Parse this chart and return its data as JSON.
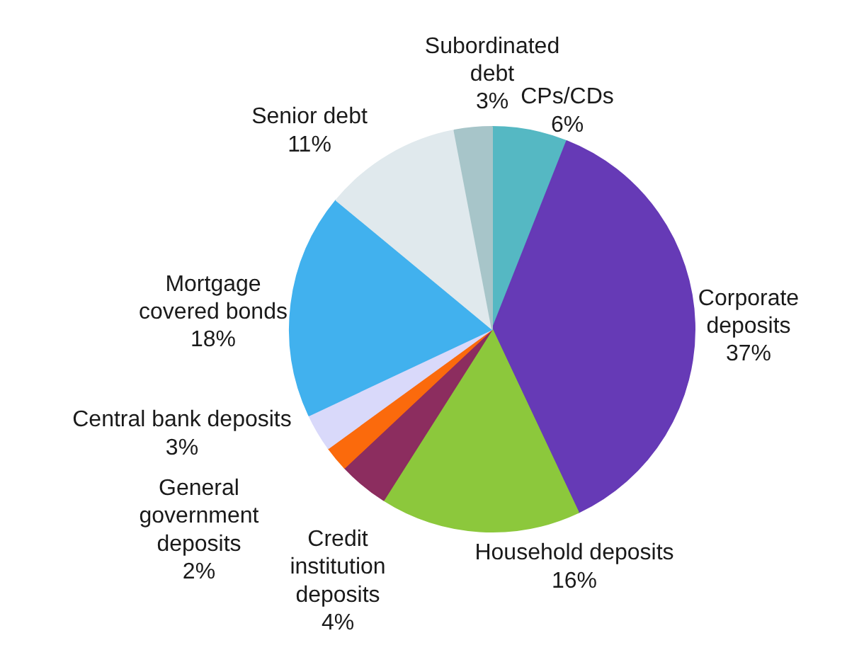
{
  "chart_data": {
    "type": "pie",
    "categories": [
      "CPs/CDs",
      "Corporate\ndeposits",
      "Household deposits",
      "Credit\ninstitution\ndeposits",
      "General\ngovernment\ndeposits",
      "Central bank deposits",
      "Mortgage\ncovered bonds",
      "Senior debt",
      "Subordinated\ndebt"
    ],
    "values": [
      6,
      37,
      16,
      4,
      2,
      3,
      18,
      11,
      3
    ],
    "colors": [
      "#55b8c3",
      "#663ab6",
      "#8cc83c",
      "#8c2d5f",
      "#fb6a0c",
      "#d9d9fa",
      "#41b1ee",
      "#e0e9ed",
      "#a7c5c9"
    ],
    "value_labels": [
      "6%",
      "37%",
      "16%",
      "4%",
      "2%",
      "3%",
      "18%",
      "11%",
      "3%"
    ]
  }
}
